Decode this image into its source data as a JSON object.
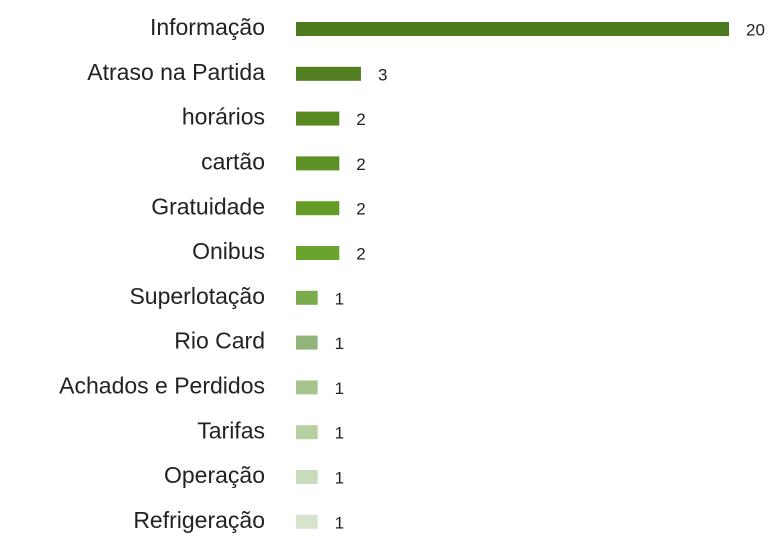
{
  "chart_data": {
    "type": "bar",
    "orientation": "horizontal",
    "categories": [
      "Informação",
      "Atraso na Partida",
      "horários",
      "cartão",
      "Gratuidade",
      "Onibus",
      "Superlotação",
      "Rio Card",
      "Achados e Perdidos",
      "Tarifas",
      "Operação",
      "Refrigeração"
    ],
    "values": [
      20,
      3,
      2,
      2,
      2,
      2,
      1,
      1,
      1,
      1,
      1,
      1
    ],
    "colors": [
      "#4e7a1e",
      "#527f20",
      "#578822",
      "#5e9124",
      "#659c27",
      "#6ba42c",
      "#7aab4c",
      "#93b57a",
      "#a6c48e",
      "#b7d0a2",
      "#c9dbba",
      "#d6e4cb"
    ],
    "xlim": [
      0,
      20
    ]
  }
}
